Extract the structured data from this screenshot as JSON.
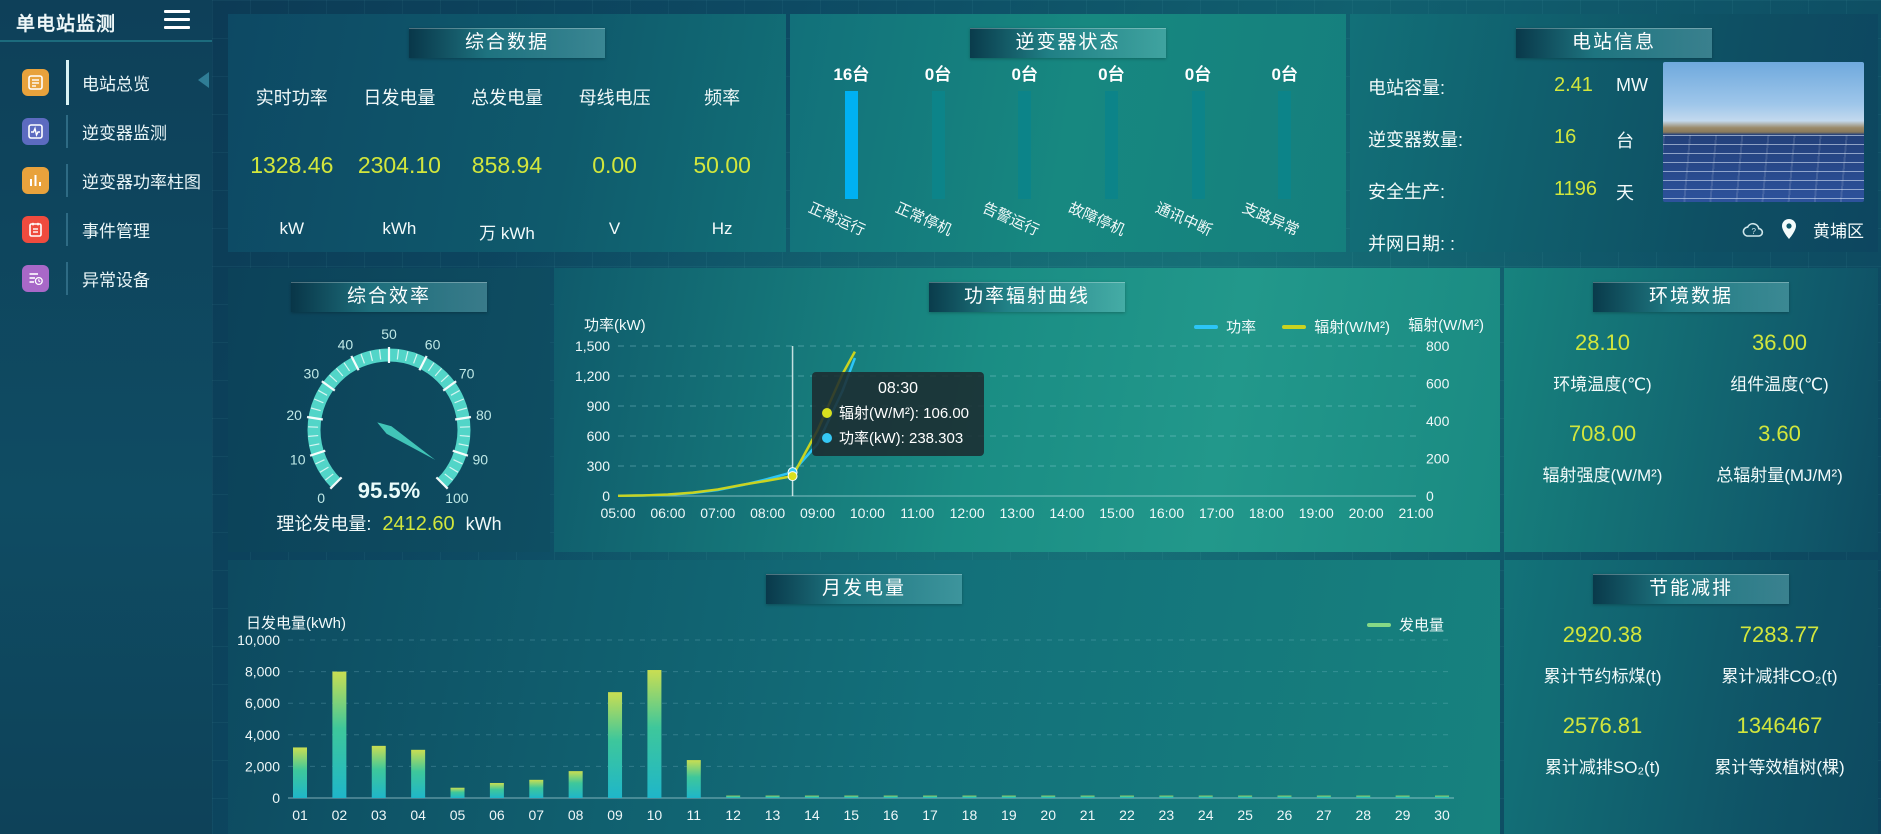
{
  "sidebar": {
    "title": "单电站监测",
    "items": [
      {
        "label": "电站总览",
        "icon": "overview-icon",
        "color": "#e8a23c",
        "active": true
      },
      {
        "label": "逆变器监测",
        "icon": "inverter-monitor-icon",
        "color": "#5c6bc0",
        "active": false
      },
      {
        "label": "逆变器功率柱图",
        "icon": "power-bars-icon",
        "color": "#e8a23c",
        "active": false
      },
      {
        "label": "事件管理",
        "icon": "event-notebook-icon",
        "color": "#ef4b3e",
        "active": false
      },
      {
        "label": "异常设备",
        "icon": "abnormal-device-icon",
        "color": "#a868c8",
        "active": false
      }
    ]
  },
  "summary": {
    "title": "综合数据",
    "metrics": [
      {
        "label": "实时功率",
        "value": "1328.46",
        "unit": "kW"
      },
      {
        "label": "日发电量",
        "value": "2304.10",
        "unit": "kWh"
      },
      {
        "label": "总发电量",
        "value": "858.94",
        "unit": "万 kWh"
      },
      {
        "label": "母线电压",
        "value": "0.00",
        "unit": "V"
      },
      {
        "label": "频率",
        "value": "50.00",
        "unit": "Hz"
      }
    ]
  },
  "station_info": {
    "title": "电站信息",
    "rows": [
      {
        "label": "电站容量:",
        "value": "2.41",
        "unit": "MW"
      },
      {
        "label": "逆变器数量:",
        "value": "16",
        "unit": "台"
      },
      {
        "label": "安全生产:",
        "value": "1196",
        "unit": "天"
      },
      {
        "label": "并网日期:  :",
        "value": "",
        "unit": ""
      }
    ],
    "location": "黄埔区"
  },
  "efficiency": {
    "footer_label": "理论发电量:",
    "footer_value": "2412.60",
    "footer_unit": "kWh"
  },
  "environment": {
    "title": "环境数据",
    "items": [
      {
        "value": "28.10",
        "label": "环境温度(℃)"
      },
      {
        "value": "36.00",
        "label": "组件温度(℃)"
      },
      {
        "value": "708.00",
        "label": "辐射强度(W/M²)"
      },
      {
        "value": "3.60",
        "label": "总辐射量(MJ/M²)"
      }
    ]
  },
  "savings": {
    "title": "节能减排",
    "items": [
      {
        "value": "2920.38",
        "label": "累计节约标煤(t)"
      },
      {
        "value": "7283.77",
        "label": "累计减排CO₂(t)"
      },
      {
        "value": "2576.81",
        "label": "累计减排SO₂(t)"
      },
      {
        "value": "1346467",
        "label": "累计等效植树(棵)"
      }
    ]
  },
  "chart_data": [
    {
      "type": "line",
      "title": "功率辐射曲线",
      "y_left": {
        "name": "功率(kW)",
        "max": 1500,
        "tick_labels": [
          "0",
          "300",
          "600",
          "900",
          "1,200",
          "1,500"
        ]
      },
      "y_right": {
        "name": "辐射(W/M²)",
        "max": 800,
        "tick_labels": [
          "0",
          "200",
          "400",
          "600",
          "800"
        ]
      },
      "x_axis_labels": [
        "05:00",
        "06:00",
        "07:00",
        "08:00",
        "09:00",
        "10:00",
        "11:00",
        "12:00",
        "13:00",
        "14:00",
        "15:00",
        "16:00",
        "17:00",
        "18:00",
        "19:00",
        "20:00",
        "21:00"
      ],
      "x_range_hours": [
        5,
        21
      ],
      "sample_hours": [
        5,
        5.5,
        6,
        6.5,
        7,
        7.5,
        8,
        8.5,
        9,
        9.5,
        9.75
      ],
      "series": [
        {
          "name": "功率",
          "axis": "left",
          "color": "#2cc5f6",
          "values": [
            2,
            5,
            12,
            30,
            60,
            110,
            170,
            238.3,
            520,
            1050,
            1380
          ]
        },
        {
          "name": "辐射(W/M²)",
          "axis": "right",
          "color": "#c9d320",
          "values": [
            1,
            3,
            8,
            18,
            35,
            60,
            82,
            106,
            350,
            650,
            770
          ]
        }
      ],
      "legend_position": "top-right",
      "grid": "dashed",
      "tooltip": {
        "time": "08:30",
        "pointer_hour": 8.5,
        "entries": [
          {
            "name": "辐射(W/M²)",
            "value": "106.00",
            "color": "#d8e11f"
          },
          {
            "name": "功率(kW)",
            "value": "238.303",
            "color": "#35c8f5"
          }
        ]
      }
    },
    {
      "type": "bar",
      "title": "月发电量",
      "ylabel": "日发电量(kWh)",
      "legend": [
        {
          "name": "发电量",
          "color": "#86d986"
        }
      ],
      "categories": [
        "01",
        "02",
        "03",
        "04",
        "05",
        "06",
        "07",
        "08",
        "09",
        "10",
        "11",
        "12",
        "13",
        "14",
        "15",
        "16",
        "17",
        "18",
        "19",
        "20",
        "21",
        "22",
        "23",
        "24",
        "25",
        "26",
        "27",
        "28",
        "29",
        "30"
      ],
      "values": [
        3200,
        8000,
        3300,
        3050,
        650,
        950,
        1150,
        1700,
        6700,
        8100,
        2400,
        150,
        150,
        150,
        150,
        150,
        150,
        150,
        150,
        150,
        150,
        150,
        150,
        150,
        150,
        150,
        150,
        150,
        150,
        150
      ],
      "ylim": [
        0,
        10000
      ],
      "ytick_labels": [
        "0",
        "2,000",
        "4,000",
        "6,000",
        "8,000",
        "10,000"
      ],
      "grid": "dashed"
    },
    {
      "type": "gauge",
      "title": "综合效率",
      "value": 95.5,
      "display": "95.5%",
      "min": 0,
      "max": 100,
      "ticks": [
        0,
        10,
        20,
        30,
        40,
        50,
        60,
        70,
        80,
        90,
        100
      ],
      "band_color": "#52d5c8"
    },
    {
      "type": "bar",
      "title": "逆变器状态",
      "unit": "台",
      "categories": [
        "正常运行",
        "正常停机",
        "告警运行",
        "故障停机",
        "通讯中断",
        "支路异常"
      ],
      "values": [
        16,
        0,
        0,
        0,
        0,
        0
      ],
      "bar_colors": [
        "#00b1f2",
        "#0c8489",
        "#0c8489",
        "#0c8489",
        "#0c8489",
        "#0c8489"
      ]
    }
  ]
}
